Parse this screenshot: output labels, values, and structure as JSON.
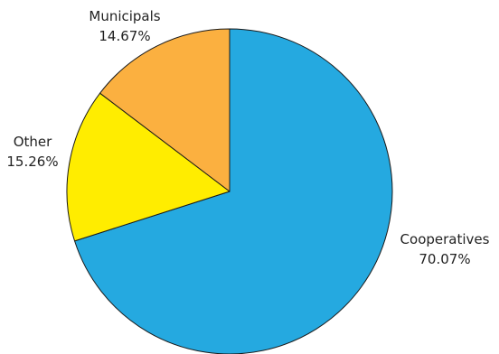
{
  "chart_data": {
    "type": "pie",
    "title": "",
    "slices": [
      {
        "label": "Cooperatives",
        "value": 70.07,
        "value_label": "70.07%",
        "color": "#25A9E0"
      },
      {
        "label": "Other",
        "value": 15.26,
        "value_label": "15.26%",
        "color": "#FFED00"
      },
      {
        "label": "Municipals",
        "value": 14.67,
        "value_label": "14.67%",
        "color": "#FBB040"
      }
    ],
    "start_angle": "12 o'clock",
    "direction": "clockwise",
    "legend": "none",
    "labels": "outside"
  }
}
